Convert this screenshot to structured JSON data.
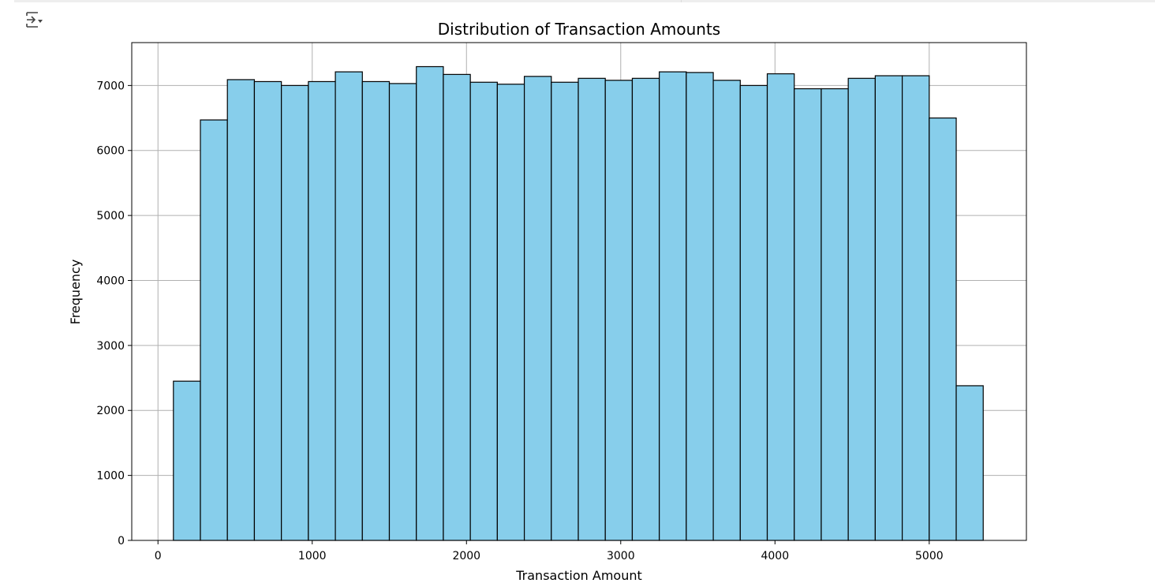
{
  "cell": {
    "toggle_icon": "output-collapse-icon"
  },
  "chart_data": {
    "type": "bar",
    "subtype": "histogram",
    "title": "Distribution of Transaction Amounts",
    "xlabel": "Transaction Amount",
    "ylabel": "Frequency",
    "xlim": [
      -170,
      5630
    ],
    "ylim": [
      0,
      7660
    ],
    "xticks": [
      0,
      1000,
      2000,
      3000,
      4000,
      5000
    ],
    "yticks": [
      0,
      1000,
      2000,
      3000,
      4000,
      5000,
      6000,
      7000
    ],
    "xtick_labels": [
      "0",
      "1000",
      "2000",
      "3000",
      "4000",
      "5000"
    ],
    "ytick_labels": [
      "0",
      "1000",
      "2000",
      "3000",
      "4000",
      "5000",
      "6000",
      "7000"
    ],
    "grid": true,
    "bar_color": "#87CEEB",
    "edge_color": "#000000",
    "bin_start": 100,
    "bin_end": 5350,
    "values": [
      2450,
      6470,
      7090,
      7060,
      7000,
      7060,
      7210,
      7060,
      7030,
      7290,
      7170,
      7050,
      7020,
      7140,
      7050,
      7110,
      7080,
      7110,
      7210,
      7200,
      7080,
      7000,
      7180,
      6950,
      6950,
      7110,
      7150,
      7150,
      6500,
      2380
    ]
  }
}
